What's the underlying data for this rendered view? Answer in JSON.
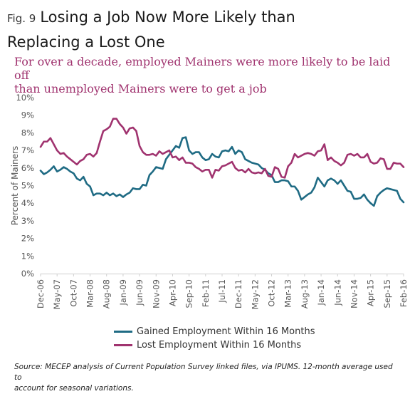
{
  "fig_label": "Fig. 9",
  "title_line1": "Losing a Job Now More Likely than",
  "title_line2": "Replacing a Lost One",
  "subtitle_line1": "For over a decade, employed Mainers were more likely to be laid off",
  "subtitle_line2": "than unemployed Mainers were to get a job",
  "source_line1": "Source: MECEP analysis of Current Population Survey linked files, via IPUMS. 12-month average used to",
  "source_line2": "account for seasonal variations.",
  "colors": {
    "gained": "#1f6b84",
    "lost": "#a0336f"
  },
  "chart_data": {
    "type": "line",
    "ylabel": "Percent of Mainers",
    "ylim": [
      0,
      10
    ],
    "yticks": [
      "0%",
      "1%",
      "2%",
      "3%",
      "4%",
      "5%",
      "6%",
      "7%",
      "8%",
      "9%",
      "10%"
    ],
    "xlim": [
      0,
      110
    ],
    "x_tick_labels": [
      {
        "x": 0,
        "label": "Dec-06"
      },
      {
        "x": 5,
        "label": "May-07"
      },
      {
        "x": 10,
        "label": "Oct-07"
      },
      {
        "x": 15,
        "label": "Mar-08"
      },
      {
        "x": 20,
        "label": "Aug-08"
      },
      {
        "x": 25,
        "label": "Jan-09"
      },
      {
        "x": 30,
        "label": "Jun-09"
      },
      {
        "x": 35,
        "label": "Nov-09"
      },
      {
        "x": 40,
        "label": "Apr-10"
      },
      {
        "x": 45,
        "label": "Sep-10"
      },
      {
        "x": 50,
        "label": "Feb-11"
      },
      {
        "x": 55,
        "label": "Jul-11"
      },
      {
        "x": 60,
        "label": "Dec-11"
      },
      {
        "x": 65,
        "label": "May-12"
      },
      {
        "x": 70,
        "label": "Oct-12"
      },
      {
        "x": 75,
        "label": "Mar-13"
      },
      {
        "x": 80,
        "label": "Aug-13"
      },
      {
        "x": 85,
        "label": "Jan-14"
      },
      {
        "x": 90,
        "label": "Jun-14"
      },
      {
        "x": 95,
        "label": "Nov-14"
      },
      {
        "x": 100,
        "label": "Apr-15"
      },
      {
        "x": 105,
        "label": "Sep-15"
      },
      {
        "x": 110,
        "label": "Feb-16"
      }
    ],
    "grid": false,
    "legend_position": "bottom",
    "series": [
      {
        "name": "Gained Employment Within 16 Months",
        "color": "#1f6b84",
        "values": [
          5.85,
          5.65,
          5.75,
          5.9,
          6.1,
          5.8,
          5.9,
          6.05,
          5.95,
          5.8,
          5.7,
          5.4,
          5.3,
          5.5,
          5.1,
          4.95,
          4.45,
          4.55,
          4.55,
          4.45,
          4.6,
          4.45,
          4.55,
          4.4,
          4.5,
          4.35,
          4.5,
          4.6,
          4.85,
          4.8,
          4.8,
          5.05,
          5.0,
          5.6,
          5.8,
          6.05,
          6.0,
          5.95,
          6.5,
          6.75,
          7.0,
          7.25,
          7.15,
          7.7,
          7.75,
          7.0,
          6.8,
          6.9,
          6.9,
          6.6,
          6.45,
          6.5,
          6.8,
          6.65,
          6.6,
          6.95,
          7.0,
          6.95,
          7.2,
          6.8,
          7.0,
          6.9,
          6.5,
          6.4,
          6.3,
          6.25,
          6.2,
          6.0,
          5.9,
          5.7,
          5.6,
          5.2,
          5.2,
          5.3,
          5.3,
          5.25,
          4.95,
          4.95,
          4.7,
          4.2,
          4.35,
          4.5,
          4.6,
          4.9,
          5.45,
          5.2,
          4.95,
          5.3,
          5.4,
          5.3,
          5.1,
          5.3,
          5.0,
          4.7,
          4.65,
          4.25,
          4.25,
          4.3,
          4.5,
          4.2,
          4.0,
          3.85,
          4.4,
          4.6,
          4.75,
          4.85,
          4.8,
          4.75,
          4.7,
          4.25,
          4.05
        ]
      },
      {
        "name": "Lost Employment Within 16 Months",
        "color": "#a0336f",
        "values": [
          7.2,
          7.5,
          7.5,
          7.7,
          7.35,
          7.0,
          6.8,
          6.85,
          6.65,
          6.5,
          6.35,
          6.2,
          6.4,
          6.5,
          6.75,
          6.8,
          6.65,
          6.85,
          7.5,
          8.1,
          8.2,
          8.35,
          8.8,
          8.8,
          8.5,
          8.3,
          7.95,
          8.25,
          8.3,
          8.1,
          7.25,
          6.9,
          6.75,
          6.75,
          6.8,
          6.7,
          6.95,
          6.8,
          6.9,
          7.0,
          6.6,
          6.65,
          6.45,
          6.6,
          6.3,
          6.3,
          6.25,
          6.05,
          5.95,
          5.8,
          5.9,
          5.9,
          5.45,
          5.9,
          5.85,
          6.1,
          6.15,
          6.25,
          6.35,
          6.0,
          5.85,
          5.9,
          5.75,
          5.95,
          5.75,
          5.7,
          5.75,
          5.7,
          5.95,
          5.55,
          5.5,
          6.05,
          5.95,
          5.5,
          5.45,
          6.1,
          6.3,
          6.8,
          6.6,
          6.7,
          6.8,
          6.85,
          6.8,
          6.7,
          6.95,
          7.0,
          7.35,
          6.45,
          6.6,
          6.4,
          6.3,
          6.15,
          6.3,
          6.75,
          6.8,
          6.7,
          6.8,
          6.6,
          6.6,
          6.8,
          6.35,
          6.25,
          6.3,
          6.55,
          6.5,
          5.95,
          5.95,
          6.3,
          6.25,
          6.25,
          6.05
        ]
      }
    ]
  }
}
